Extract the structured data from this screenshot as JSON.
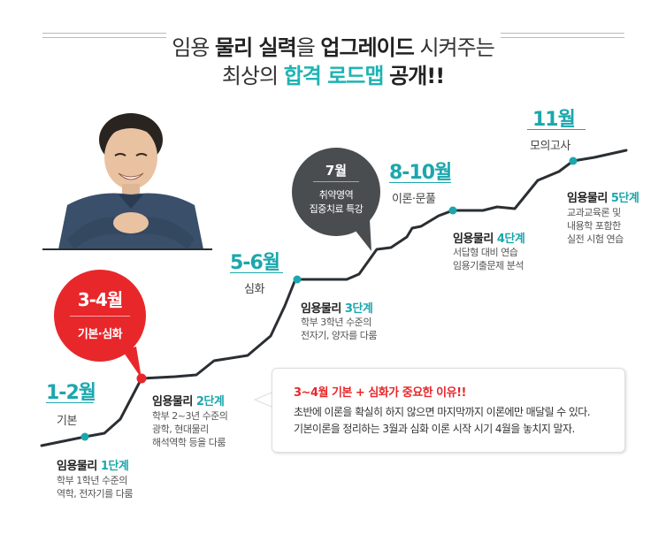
{
  "header": {
    "line1_p1": "임용 ",
    "line1_b1": "물리 실력",
    "line1_p2": "을 ",
    "line1_b2": "업그레이드",
    "line1_p3": " 시켜주는",
    "line2_p1": "최상의 ",
    "line2_teal": "합격 로드맵",
    "line2_p2": " ",
    "line2_b": "공개!!"
  },
  "milestones": [
    {
      "month": "1-2월",
      "sub": "기본"
    },
    {
      "month": "5-6월",
      "sub": "심화"
    },
    {
      "month": "8-10월",
      "sub": "이론·문풀"
    },
    {
      "month": "11월",
      "sub": "모의고사"
    }
  ],
  "red_bubble": {
    "month": "3-4월",
    "sub": "기본·심화"
  },
  "dark_bubble": {
    "month": "7월",
    "line1": "취약영역",
    "line2": "집중치료 특강"
  },
  "stages": [
    {
      "prefix": "임용물리 ",
      "step": "1단계",
      "desc": [
        "학부 1학년 수준의",
        "역학, 전자기를 다룸"
      ]
    },
    {
      "prefix": "임용물리 ",
      "step": "2단계",
      "desc": [
        "학부 2~3년 수준의",
        "광학, 현대물리",
        "해석역학 등을 다룸"
      ]
    },
    {
      "prefix": "임용물리 ",
      "step": "3단계",
      "desc": [
        "학부 3학년 수준의",
        "전자기, 양자를 다룸"
      ]
    },
    {
      "prefix": "임용물리 ",
      "step": "4단계",
      "desc": [
        "서답형 대비 연습",
        "임용기출문제 분석"
      ]
    },
    {
      "prefix": "임용물리 ",
      "step": "5단계",
      "desc": [
        "교과교육론 및",
        "내용학 포함한",
        "실전 시험 연습"
      ]
    }
  ],
  "info_box": {
    "title": "3~4월 기본 + 심화가 중요한 이유!!",
    "line1": "초반에 이론을 확실히 하지 않으면 마지막까지 이론에만 매달릴 수 있다.",
    "line2": "기본이론을 정리하는 3월과 심화 이론 시작 시기 4월을 놓치지 말자."
  },
  "colors": {
    "teal": "#1aa7ad",
    "red": "#e8272b",
    "dark": "#4a4d50",
    "line": "#2b2f33"
  },
  "icons": {
    "portrait": "instructor-photo"
  }
}
